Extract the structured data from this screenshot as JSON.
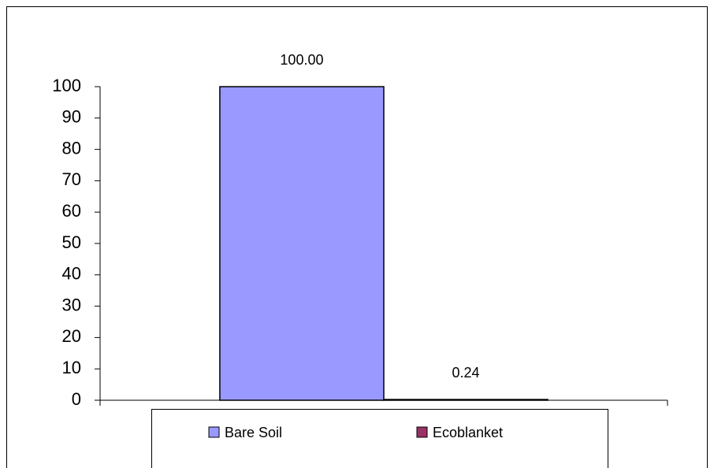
{
  "chart_data": {
    "type": "bar",
    "categories": [
      null
    ],
    "series": [
      {
        "name": "Bare Soil",
        "color": "#9999ff",
        "values": [
          100
        ],
        "value_labels": [
          "100.00"
        ]
      },
      {
        "name": "Ecoblanket",
        "color": "#993366",
        "values": [
          0.24
        ],
        "value_labels": [
          "0.24"
        ]
      }
    ],
    "ylim": [
      0,
      100
    ],
    "yticks": [
      0,
      10,
      20,
      30,
      40,
      50,
      60,
      70,
      80,
      90,
      100
    ],
    "legend": "bottom"
  }
}
